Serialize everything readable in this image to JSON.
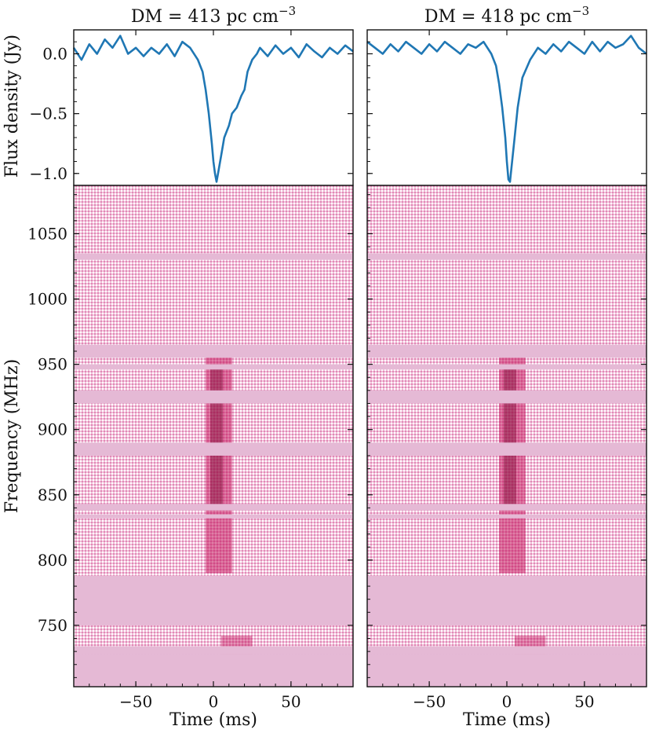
{
  "chart_data": [
    {
      "panel": "left",
      "title": "DM = 413 pc cm",
      "title_sup": "−3",
      "type": "line",
      "ylabel": "Flux density (Jy)",
      "xlabel": "",
      "xlim": [
        -90,
        90
      ],
      "ylim": [
        -1.1,
        0.2
      ],
      "yticks": [
        0.0,
        -0.5,
        -1.0
      ],
      "ytick_labels": [
        "0.0",
        "−0.5",
        "−1.0"
      ],
      "color": "#1f77b4",
      "series": [
        {
          "x": [
            -90,
            -85,
            -80,
            -75,
            -70,
            -65,
            -60,
            -55,
            -50,
            -45,
            -40,
            -35,
            -30,
            -25,
            -20,
            -15,
            -10,
            -7,
            -5,
            -3,
            -1,
            0,
            1,
            2,
            3,
            5,
            7,
            10,
            12,
            15,
            18,
            20,
            22,
            25,
            28,
            30,
            35,
            40,
            45,
            50,
            55,
            60,
            65,
            70,
            75,
            80,
            85,
            90
          ],
          "y": [
            0.05,
            -0.05,
            0.08,
            0.0,
            0.12,
            0.05,
            0.15,
            0.0,
            0.05,
            -0.02,
            0.05,
            0.0,
            0.08,
            -0.02,
            0.1,
            0.05,
            -0.05,
            -0.15,
            -0.3,
            -0.5,
            -0.75,
            -0.9,
            -1.0,
            -1.07,
            -1.0,
            -0.85,
            -0.7,
            -0.6,
            -0.5,
            -0.45,
            -0.35,
            -0.3,
            -0.15,
            -0.05,
            0.0,
            0.05,
            -0.02,
            0.07,
            0.0,
            0.05,
            -0.03,
            0.08,
            0.02,
            -0.03,
            0.05,
            0.0,
            0.07,
            0.02
          ]
        }
      ],
      "heatmap": {
        "ylabel": "Frequency (MHz)",
        "xlabel": "Time (ms)",
        "xlim": [
          -90,
          90
        ],
        "ylim": [
          703,
          1087
        ],
        "xticks": [
          -50,
          0,
          50
        ],
        "xtick_labels": [
          "−50",
          "0",
          "50"
        ],
        "yticks": [
          750,
          800,
          850,
          900,
          950,
          1000,
          1050
        ],
        "ytick_labels": [
          "750",
          "800",
          "850",
          "900",
          "950",
          "1000",
          "1050"
        ],
        "colormap": "white-to-dark-magenta",
        "flagged_bands_mhz": [
          [
            1030,
            1035
          ],
          [
            955,
            965
          ],
          [
            946,
            950
          ],
          [
            920,
            930
          ],
          [
            880,
            890
          ],
          [
            838,
            843
          ],
          [
            832,
            835
          ],
          [
            750,
            788
          ],
          [
            728,
            734
          ],
          [
            703,
            728
          ]
        ]
      }
    },
    {
      "panel": "right",
      "title": "DM = 418 pc cm",
      "title_sup": "−3",
      "type": "line",
      "xlim": [
        -90,
        90
      ],
      "ylim": [
        -1.1,
        0.2
      ],
      "color": "#1f77b4",
      "series": [
        {
          "x": [
            -90,
            -85,
            -80,
            -75,
            -70,
            -65,
            -60,
            -55,
            -50,
            -45,
            -40,
            -35,
            -30,
            -25,
            -20,
            -15,
            -10,
            -7,
            -5,
            -3,
            -1,
            0,
            1,
            2,
            3,
            5,
            7,
            10,
            15,
            20,
            25,
            30,
            35,
            40,
            45,
            50,
            55,
            60,
            65,
            70,
            75,
            80,
            85,
            90
          ],
          "y": [
            0.1,
            0.05,
            0.0,
            0.08,
            0.02,
            0.1,
            0.05,
            0.0,
            0.08,
            0.02,
            0.1,
            0.05,
            0.0,
            0.08,
            0.05,
            0.1,
            0.0,
            -0.1,
            -0.25,
            -0.45,
            -0.7,
            -0.9,
            -1.05,
            -1.07,
            -0.95,
            -0.7,
            -0.45,
            -0.2,
            -0.05,
            0.05,
            0.0,
            0.08,
            0.02,
            0.1,
            0.05,
            0.0,
            0.1,
            0.02,
            0.1,
            0.05,
            0.08,
            0.15,
            0.05,
            0.0
          ]
        }
      ],
      "heatmap": {
        "xlabel": "Time (ms)",
        "xlim": [
          -90,
          90
        ],
        "ylim": [
          703,
          1087
        ],
        "xticks": [
          -50,
          0,
          50
        ],
        "xtick_labels": [
          "−50",
          "0",
          "50"
        ],
        "colormap": "white-to-dark-magenta",
        "flagged_bands_mhz": [
          [
            1030,
            1035
          ],
          [
            955,
            965
          ],
          [
            946,
            950
          ],
          [
            920,
            930
          ],
          [
            880,
            890
          ],
          [
            838,
            843
          ],
          [
            832,
            835
          ],
          [
            750,
            788
          ],
          [
            728,
            734
          ],
          [
            703,
            728
          ]
        ]
      }
    }
  ]
}
